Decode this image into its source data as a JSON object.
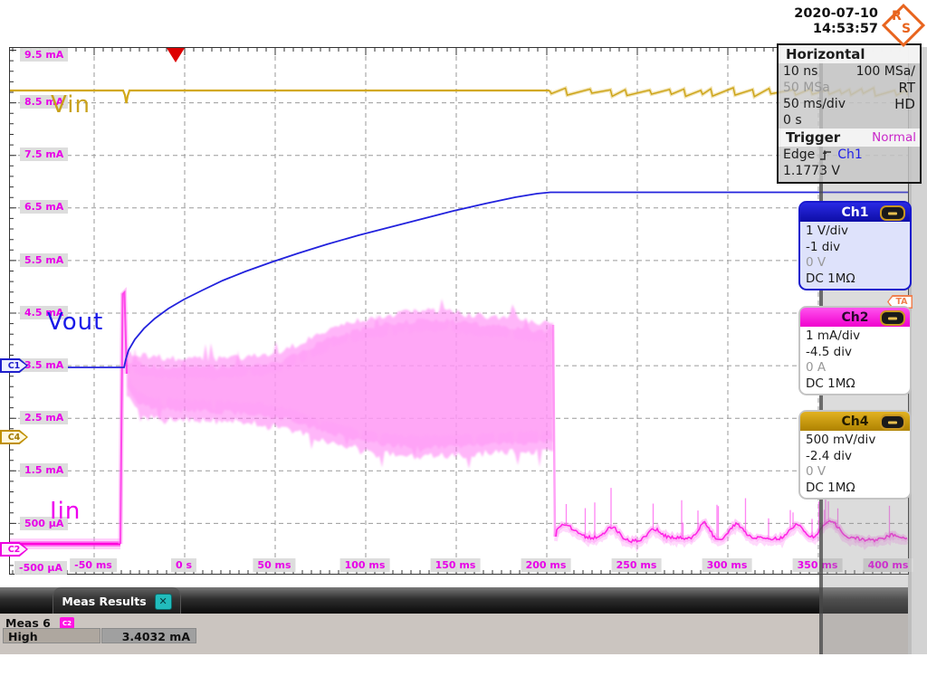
{
  "header": {
    "date": "2020-07-10",
    "time": "14:53:57",
    "logo_letters": [
      "R",
      "S"
    ]
  },
  "horizontal_panel": {
    "title": "Horizontal",
    "resolution": "10 ns",
    "sample_rate": "100 MSa/",
    "sample_rate_alt": "50 MSa",
    "mode_rt": "RT",
    "timebase": "50 ms/div",
    "mode_hd": "HD",
    "position": "0 s"
  },
  "trigger_panel": {
    "title": "Trigger",
    "mode": "Normal",
    "type": "Edge",
    "source": "Ch1",
    "level": "1.1773 V"
  },
  "channels": [
    {
      "label": "Ch1",
      "scale": "1 V/div",
      "offset": "-1 div",
      "position": "0 V",
      "coupling": "DC 1MΩ",
      "color": "#1818CC"
    },
    {
      "label": "Ch2",
      "scale": "1 mA/div",
      "offset": "-4.5 div",
      "position": "0 A",
      "coupling": "DC 1MΩ",
      "color": "#FF00E6"
    },
    {
      "label": "Ch4",
      "scale": "500 mV/div",
      "offset": "-2.4 div",
      "position": "0 V",
      "coupling": "DC 1MΩ",
      "color": "#C89600"
    }
  ],
  "plot": {
    "y_labels": [
      "9.5 mA",
      "8.5 mA",
      "7.5 mA",
      "6.5 mA",
      "5.5 mA",
      "4.5 mA",
      "3.5 mA",
      "2.5 mA",
      "1.5 mA",
      "500 µA",
      "-500 µA"
    ],
    "x_labels": [
      "-50 ms",
      "0 s",
      "50 ms",
      "100 ms",
      "150 ms",
      "200 ms",
      "250 ms",
      "300 ms",
      "350 ms",
      "400 ms"
    ],
    "trace_labels": {
      "vin": "Vin",
      "vout": "Vout",
      "iin": "Iin"
    },
    "offset_markers": {
      "c1": "C1",
      "c4": "C4",
      "c2": "C2"
    },
    "trigger_annotation": "TA"
  },
  "measurements": {
    "tab_label": "Meas Results",
    "close_glyph": "✕",
    "group": "Meas 6",
    "source_badge": "C2",
    "rows": [
      {
        "name": "High",
        "value": "3.4032 mA"
      }
    ]
  },
  "chart_data": {
    "type": "line",
    "xlabel": "time (50 ms/div, trigger at 0 s)",
    "x_range_ms": [
      -96,
      400
    ],
    "series": [
      {
        "name": "Vin (Ch4, 500 mV/div)",
        "color": "#C9A21C",
        "summary": "flat ≈3.3 V; brief dip at ≈ -33 ms; small ripple after ≈200 ms"
      },
      {
        "name": "Vout (Ch1, 1 V/div)",
        "color": "#2222DD",
        "summary": "0 V until ≈ -33 ms, then charges logarithmically to ≈3.3 V, flat after ≈200 ms"
      },
      {
        "name": "Iin (Ch2, 1 mA/div)",
        "color": "#FF00E6",
        "summary": "≈0.1 mA baseline; spike ≈4.9 mA at -33 ms; dense switching envelope ≈2.5–4.4 mA until ≈205 ms; then ≈0.2 mA with periodic spikes to ≈0.8 mA; measured High = 3.4032 mA"
      }
    ]
  }
}
